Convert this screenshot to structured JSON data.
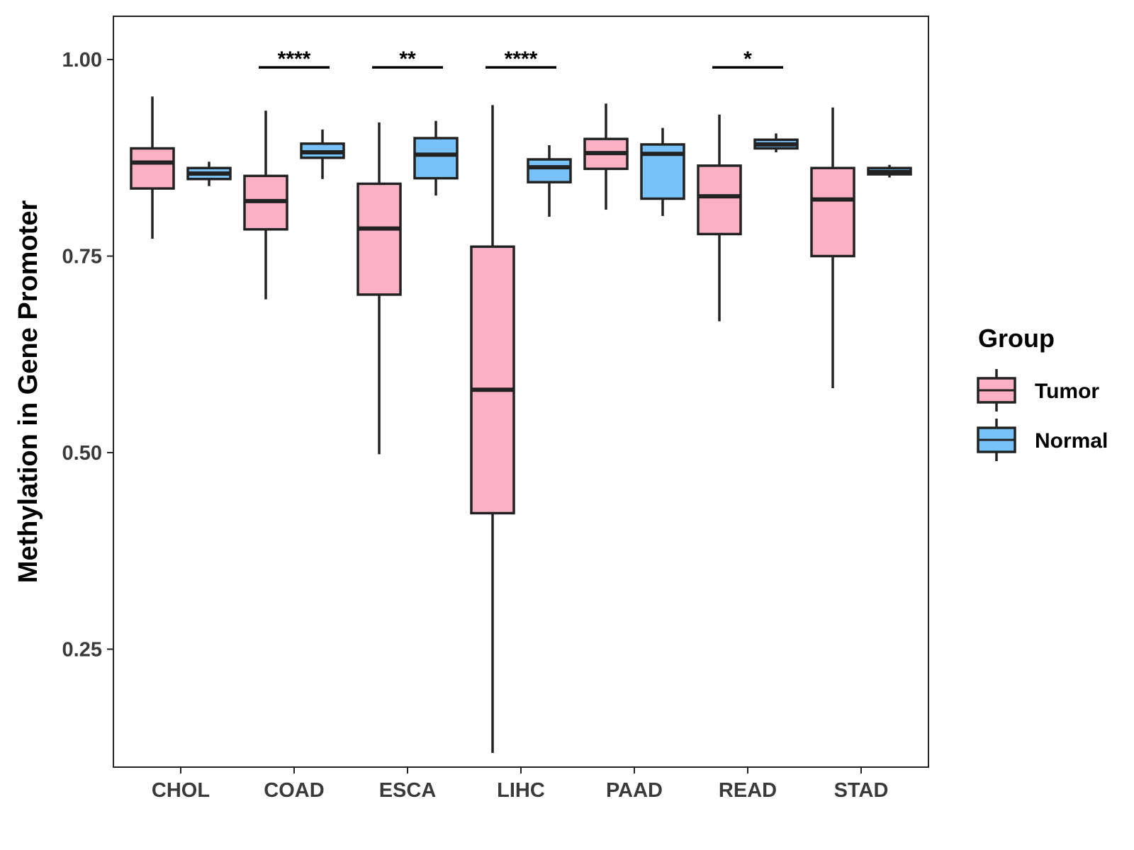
{
  "chart_data": {
    "type": "boxplot",
    "title": "",
    "xlabel": "",
    "ylabel": "Methylation in Gene Promoter",
    "ylim": [
      0.1,
      1.055
    ],
    "yticks": [
      0.25,
      0.5,
      0.75,
      1.0
    ],
    "ytick_labels": [
      "0.25",
      "0.50",
      "0.75",
      "1.00"
    ],
    "grid": false,
    "categories": [
      "CHOL",
      "COAD",
      "ESCA",
      "LIHC",
      "PAAD",
      "READ",
      "STAD"
    ],
    "legend": {
      "title": "Group",
      "position": "right",
      "entries": [
        {
          "name": "Tumor",
          "color": "#FBB0C3"
        },
        {
          "name": "Normal",
          "color": "#77C2F8"
        }
      ]
    },
    "series": [
      {
        "name": "Tumor",
        "color": "#FBB0C3",
        "boxes": [
          {
            "category": "CHOL",
            "min": 0.772,
            "q1": 0.836,
            "median": 0.869,
            "q3": 0.887,
            "max": 0.953
          },
          {
            "category": "COAD",
            "min": 0.695,
            "q1": 0.784,
            "median": 0.82,
            "q3": 0.852,
            "max": 0.935
          },
          {
            "category": "ESCA",
            "min": 0.498,
            "q1": 0.701,
            "median": 0.785,
            "q3": 0.842,
            "max": 0.92
          },
          {
            "category": "LIHC",
            "min": 0.118,
            "q1": 0.423,
            "median": 0.58,
            "q3": 0.762,
            "max": 0.942
          },
          {
            "category": "PAAD",
            "min": 0.809,
            "q1": 0.861,
            "median": 0.881,
            "q3": 0.899,
            "max": 0.944
          },
          {
            "category": "READ",
            "min": 0.667,
            "q1": 0.778,
            "median": 0.826,
            "q3": 0.865,
            "max": 0.93
          },
          {
            "category": "STAD",
            "min": 0.582,
            "q1": 0.75,
            "median": 0.822,
            "q3": 0.862,
            "max": 0.939
          }
        ]
      },
      {
        "name": "Normal",
        "color": "#77C2F8",
        "boxes": [
          {
            "category": "CHOL",
            "min": 0.839,
            "q1": 0.848,
            "median": 0.855,
            "q3": 0.862,
            "max": 0.87
          },
          {
            "category": "COAD",
            "min": 0.848,
            "q1": 0.875,
            "median": 0.882,
            "q3": 0.893,
            "max": 0.911
          },
          {
            "category": "ESCA",
            "min": 0.827,
            "q1": 0.849,
            "median": 0.879,
            "q3": 0.9,
            "max": 0.922
          },
          {
            "category": "LIHC",
            "min": 0.8,
            "q1": 0.844,
            "median": 0.863,
            "q3": 0.873,
            "max": 0.891
          },
          {
            "category": "PAAD",
            "min": 0.801,
            "q1": 0.823,
            "median": 0.88,
            "q3": 0.892,
            "max": 0.913
          },
          {
            "category": "READ",
            "min": 0.882,
            "q1": 0.887,
            "median": 0.892,
            "q3": 0.898,
            "max": 0.906
          },
          {
            "category": "STAD",
            "min": 0.85,
            "q1": 0.854,
            "median": 0.857,
            "q3": 0.862,
            "max": 0.866
          }
        ]
      }
    ],
    "annotations": [
      {
        "category": "COAD",
        "label": "****",
        "y": 0.99
      },
      {
        "category": "ESCA",
        "label": "**",
        "y": 0.99
      },
      {
        "category": "LIHC",
        "label": "****",
        "y": 0.99
      },
      {
        "category": "READ",
        "label": "*",
        "y": 0.99
      }
    ]
  }
}
